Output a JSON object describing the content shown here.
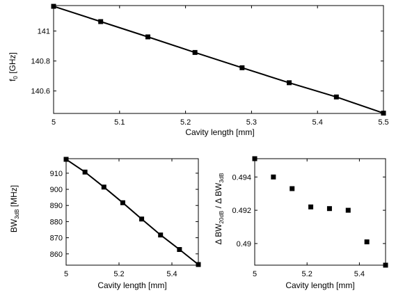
{
  "chart_data": [
    {
      "type": "line",
      "xlabel": "Cavity length [mm]",
      "ylabel": {
        "main": "f",
        "sub": "0",
        "rest": " [GHz]"
      },
      "xlim": [
        5,
        5.5
      ],
      "ylim": [
        140.45,
        141.17
      ],
      "xticks": [
        "5",
        "5.1",
        "5.2",
        "5.3",
        "5.4",
        "5.5"
      ],
      "yticks": [
        "140.6",
        "140.8",
        "141"
      ],
      "markers": true,
      "connect": true,
      "x": [
        5.0,
        5.0714,
        5.1429,
        5.2143,
        5.2857,
        5.3571,
        5.4286,
        5.5
      ],
      "y": [
        141.165,
        141.063,
        140.961,
        140.857,
        140.755,
        140.655,
        140.56,
        140.452
      ]
    },
    {
      "type": "line",
      "xlabel": "Cavity length [mm]",
      "ylabel": {
        "main": "BW",
        "sub": "3dB",
        "rest": " [MHz]"
      },
      "xlim": [
        5,
        5.5
      ],
      "ylim": [
        853,
        919
      ],
      "xticks": [
        "5",
        "5.2",
        "5.4"
      ],
      "yticks": [
        "860",
        "870",
        "880",
        "890",
        "900",
        "910"
      ],
      "markers": true,
      "connect": true,
      "x": [
        5.0,
        5.0714,
        5.1429,
        5.2143,
        5.2857,
        5.3571,
        5.4286,
        5.5
      ],
      "y": [
        918.6,
        910.7,
        901.4,
        891.7,
        881.6,
        871.7,
        862.7,
        853.4
      ]
    },
    {
      "type": "scatter",
      "xlabel": "Cavity length [mm]",
      "ylabel": {
        "p1": "Δ BW",
        "s1": "20dB",
        "p2": " / Δ BW",
        "s2": "3dB"
      },
      "xlim": [
        5,
        5.5
      ],
      "ylim": [
        0.4887,
        0.4951
      ],
      "xticks": [
        "5",
        "5.2",
        "5.4"
      ],
      "yticks": [
        "0.49",
        "0.492",
        "0.494"
      ],
      "markers": true,
      "connect": false,
      "x": [
        5.0,
        5.0714,
        5.1429,
        5.2143,
        5.2857,
        5.3571,
        5.4286,
        5.5
      ],
      "y": [
        0.4951,
        0.494,
        0.4933,
        0.4922,
        0.4921,
        0.492,
        0.4901,
        0.4887
      ]
    }
  ]
}
